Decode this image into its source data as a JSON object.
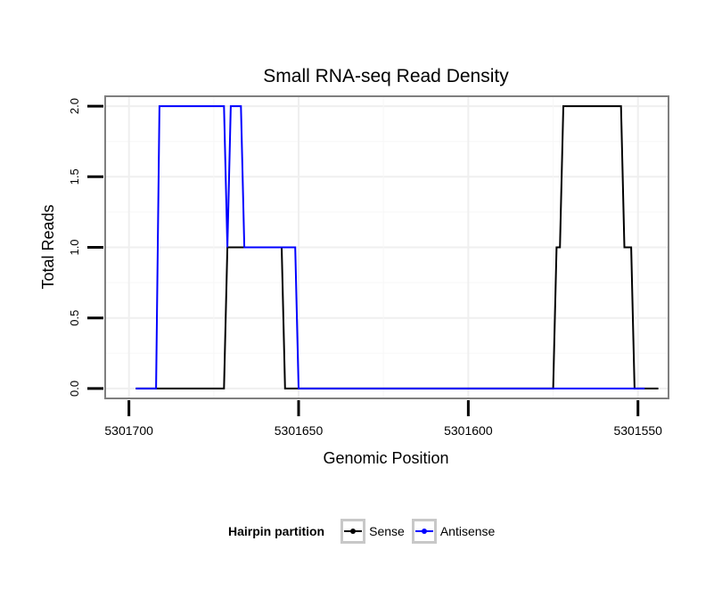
{
  "chart_data": {
    "type": "line",
    "title": "Small RNA-seq Read Density",
    "xlabel": "Genomic Position",
    "ylabel": "Total Reads",
    "xlim": [
      5301707,
      5301541
    ],
    "ylim": [
      -0.07,
      2.07
    ],
    "x_reversed": true,
    "xticks": [
      5301700,
      5301650,
      5301600,
      5301550
    ],
    "xtick_labels": [
      "5301700",
      "5301650",
      "5301600",
      "5301550"
    ],
    "yticks": [
      0.0,
      0.5,
      1.0,
      1.5,
      2.0
    ],
    "ytick_labels": [
      "0.0",
      "0.5",
      "1.0",
      "1.5",
      "2.0"
    ],
    "grid": true,
    "legend_position": "bottom",
    "legend_title": "Hairpin partition",
    "series": [
      {
        "name": "Sense",
        "color": "#000000",
        "x": [
          5301698,
          5301672,
          5301671,
          5301655,
          5301654,
          5301626,
          5301625,
          5301623,
          5301622,
          5301607,
          5301606,
          5301604,
          5301603,
          5301579,
          5301577,
          5301575,
          5301574,
          5301573,
          5301572,
          5301570,
          5301569,
          5301555,
          5301554,
          5301552,
          5301551,
          5301549,
          5301548,
          5301544
        ],
        "values": [
          0,
          0,
          1,
          1,
          0,
          0,
          0,
          0,
          0,
          0,
          0,
          0,
          0,
          0,
          0,
          0,
          1,
          1,
          2,
          2,
          2,
          2,
          1,
          1,
          0,
          0,
          0,
          0
        ]
      },
      {
        "name": "Antisense",
        "color": "#0000ff",
        "x": [
          5301698,
          5301692,
          5301691,
          5301672,
          5301671,
          5301670,
          5301667,
          5301666,
          5301651,
          5301650,
          5301625,
          5301548
        ],
        "values": [
          0,
          0,
          2,
          2,
          1,
          2,
          2,
          1,
          1,
          0,
          0,
          0
        ]
      }
    ]
  }
}
